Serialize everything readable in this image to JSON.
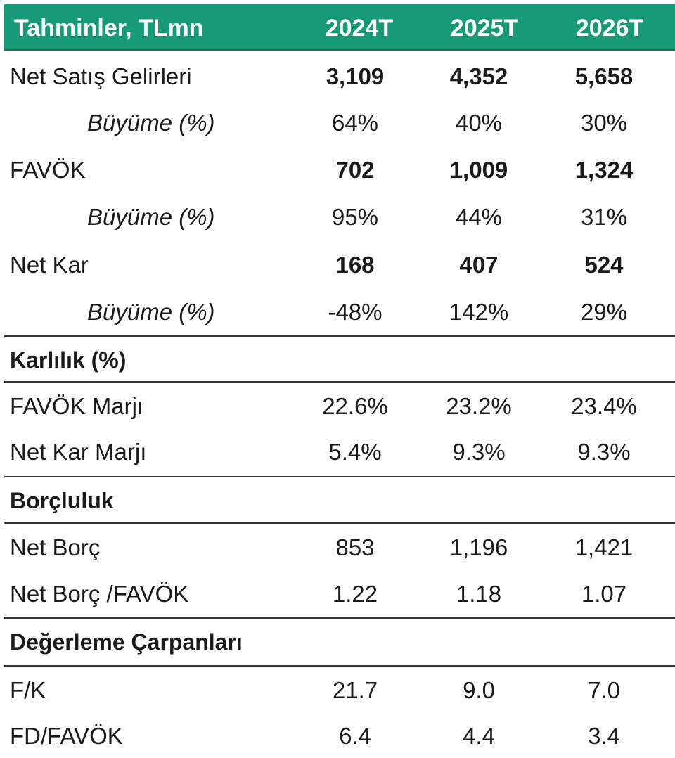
{
  "header": {
    "title": "Tahminler, TLmn",
    "years": [
      "2024T",
      "2025T",
      "2026T"
    ]
  },
  "rows": {
    "net_satis": {
      "label": "Net Satış Gelirleri",
      "values": [
        "3,109",
        "4,352",
        "5,658"
      ]
    },
    "net_satis_buyume": {
      "label": "Büyüme (%)",
      "values": [
        "64%",
        "40%",
        "30%"
      ]
    },
    "favok": {
      "label": "FAVÖK",
      "values": [
        "702",
        "1,009",
        "1,324"
      ]
    },
    "favok_buyume": {
      "label": "Büyüme (%)",
      "values": [
        "95%",
        "44%",
        "31%"
      ]
    },
    "net_kar": {
      "label": "Net Kar",
      "values": [
        "168",
        "407",
        "524"
      ]
    },
    "net_kar_buyume": {
      "label": "Büyüme (%)",
      "values": [
        "-48%",
        "142%",
        "29%"
      ]
    },
    "favok_marji": {
      "label": "FAVÖK Marjı",
      "values": [
        "22.6%",
        "23.2%",
        "23.4%"
      ]
    },
    "net_kar_marji": {
      "label": "Net Kar Marjı",
      "values": [
        "5.4%",
        "9.3%",
        "9.3%"
      ]
    },
    "net_borc": {
      "label": "Net Borç",
      "values": [
        "853",
        "1,196",
        "1,421"
      ]
    },
    "net_borc_favok": {
      "label": "Net Borç /FAVÖK",
      "values": [
        "1.22",
        "1.18",
        "1.07"
      ]
    },
    "fk": {
      "label": "F/K",
      "values": [
        "21.7",
        "9.0",
        "7.0"
      ]
    },
    "fd_favok": {
      "label": "FD/FAVÖK",
      "values": [
        "6.4",
        "4.4",
        "3.4"
      ]
    }
  },
  "sections": {
    "karlilik": "Karlılık (%)",
    "borcluluk": "Borçluluk",
    "degerleme": "Değerleme Çarpanları"
  },
  "colors": {
    "header_bg": "#169a78",
    "header_text": "#ffffff",
    "rule": "#333333"
  }
}
